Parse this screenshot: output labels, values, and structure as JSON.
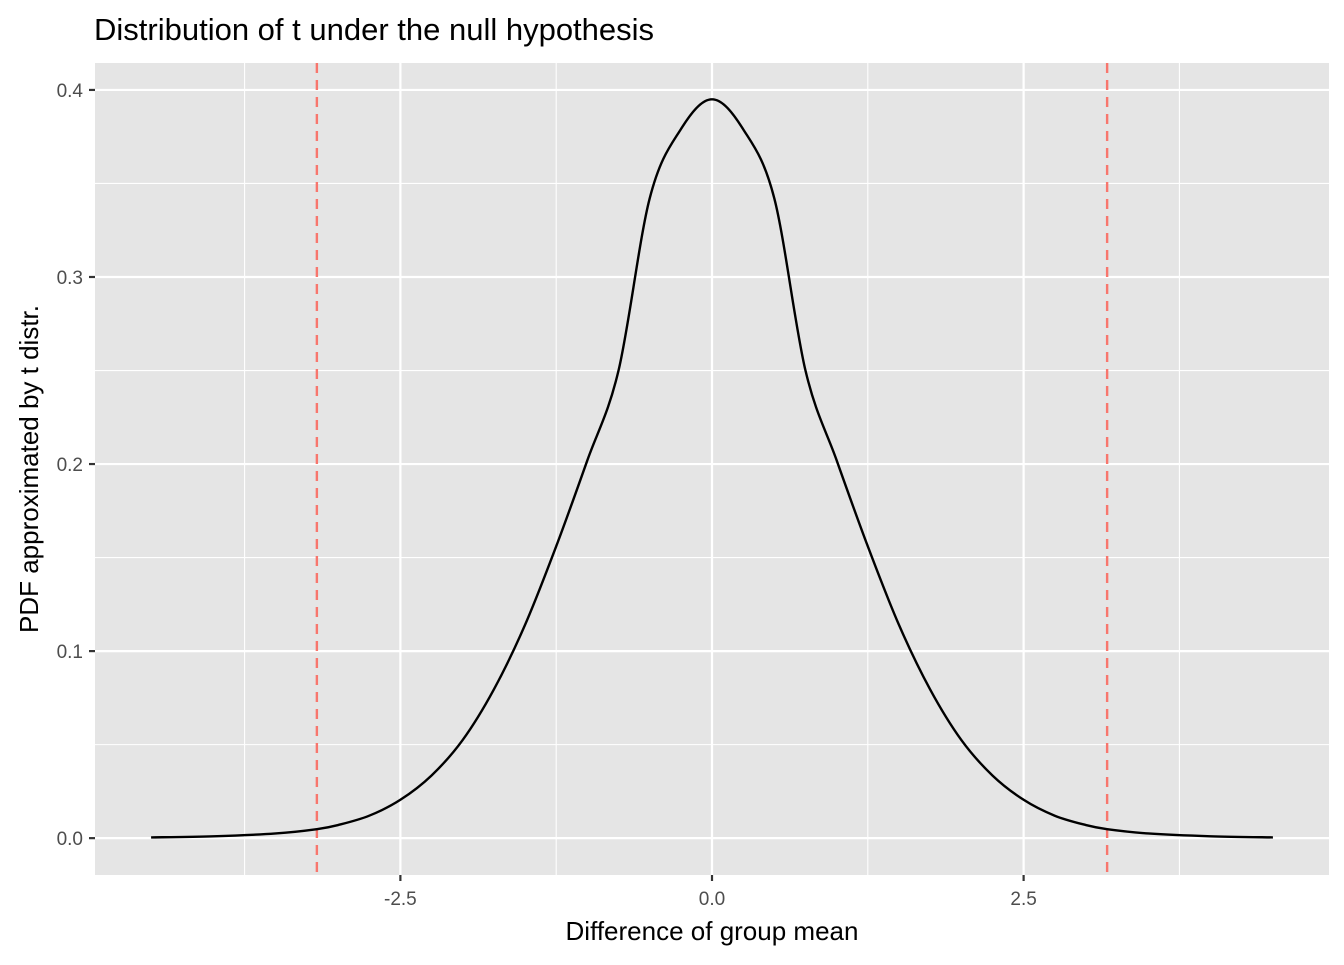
{
  "chart_data": {
    "type": "line",
    "title": "Distribution of t under the null hypothesis",
    "xlabel": "Difference of group mean",
    "ylabel": "PDF approximated by t distr.",
    "xlim": [
      -4.95,
      4.95
    ],
    "ylim": [
      -0.0197,
      0.4144
    ],
    "x_ticks": [
      -2.5,
      0.0,
      2.5
    ],
    "x_tick_labels": [
      "-2.5",
      "0.0",
      "2.5"
    ],
    "x_minor_ticks": [
      -3.75,
      -1.25,
      1.25,
      3.75
    ],
    "y_ticks": [
      0.0,
      0.1,
      0.2,
      0.3,
      0.4
    ],
    "y_tick_labels": [
      "0.0",
      "0.1",
      "0.2",
      "0.3",
      "0.4"
    ],
    "y_minor_ticks": [
      0.05,
      0.15,
      0.25,
      0.35
    ],
    "grid": true,
    "legend": "none",
    "series": [
      {
        "color": "#000000",
        "x": [
          -4.5,
          -4.0,
          -3.5,
          -3.17,
          -3.0,
          -2.75,
          -2.5,
          -2.25,
          -2.0,
          -1.75,
          -1.5,
          -1.25,
          -1.0,
          -0.75,
          -0.5,
          -0.25,
          0.0,
          0.25,
          0.5,
          0.75,
          1.0,
          1.25,
          1.5,
          1.75,
          2.0,
          2.25,
          2.5,
          2.75,
          3.0,
          3.17,
          3.5,
          4.0,
          4.5
        ],
        "y": [
          0.0004,
          0.001,
          0.0025,
          0.0048,
          0.007,
          0.012,
          0.0205,
          0.0335,
          0.0525,
          0.0795,
          0.114,
          0.156,
          0.202,
          0.25,
          0.342,
          0.379,
          0.395,
          0.379,
          0.342,
          0.25,
          0.202,
          0.156,
          0.114,
          0.0795,
          0.0525,
          0.0335,
          0.0205,
          0.012,
          0.007,
          0.0048,
          0.0025,
          0.001,
          0.0004
        ]
      }
    ],
    "reference_lines": [
      {
        "axis": "x",
        "value": -3.17,
        "style": "dashed",
        "color": "#f8766d"
      },
      {
        "axis": "x",
        "value": 3.17,
        "style": "dashed",
        "color": "#f8766d"
      }
    ],
    "colors": {
      "panel": "#e5e5e5",
      "grid": "#ffffff",
      "curve": "#000000",
      "reference": "#f8766d"
    }
  }
}
